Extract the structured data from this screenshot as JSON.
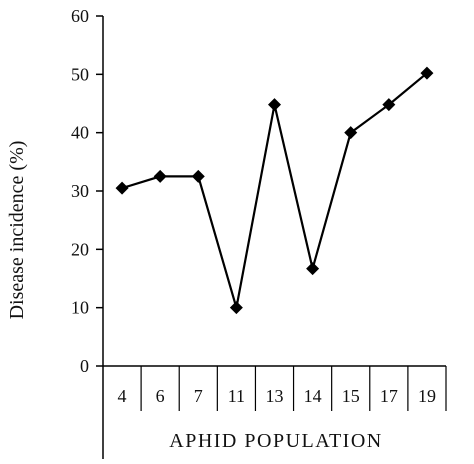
{
  "chart_data": {
    "type": "line",
    "title": "",
    "xlabel": "APHID POPULATION",
    "ylabel": "Disease incidence (%)",
    "categories": [
      "4",
      "6",
      "7",
      "11",
      "13",
      "14",
      "15",
      "17",
      "19"
    ],
    "series": [
      {
        "values": [
          30.5,
          32.5,
          32.5,
          10,
          44.8,
          16.7,
          40,
          44.8,
          50.2
        ]
      }
    ],
    "ylim": [
      0,
      60
    ],
    "yticks": [
      "0",
      "10",
      "20",
      "30",
      "40",
      "50",
      "60"
    ],
    "grid": false,
    "legend": "none",
    "marker": "diamond",
    "line_color": "#000000"
  }
}
